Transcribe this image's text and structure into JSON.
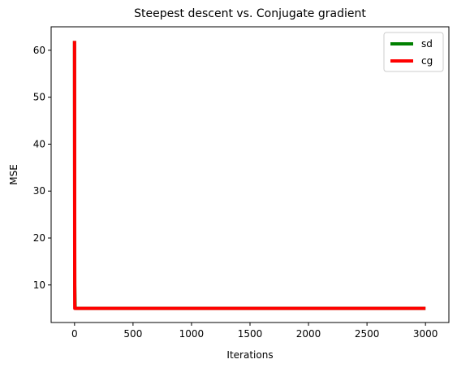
{
  "chart_data": {
    "type": "line",
    "title": "Steepest descent vs. Conjugate gradient",
    "xlabel": "Iterations",
    "ylabel": "MSE",
    "xlim": [
      -200,
      3200
    ],
    "ylim": [
      2,
      65
    ],
    "xticks": [
      0,
      500,
      1000,
      1500,
      2000,
      2500,
      3000
    ],
    "yticks": [
      10,
      20,
      30,
      40,
      50,
      60
    ],
    "grid": false,
    "legend_position": "top-right",
    "series": [
      {
        "name": "sd",
        "color": "#008000",
        "x": [
          0,
          1,
          2,
          5,
          10,
          3000
        ],
        "y": [
          62,
          30,
          10,
          5.2,
          5.0,
          5.0
        ]
      },
      {
        "name": "cg",
        "color": "#ff0000",
        "x": [
          0,
          1,
          2,
          10,
          3000
        ],
        "y": [
          62,
          20,
          5.0,
          5.0,
          5.0
        ]
      }
    ]
  }
}
